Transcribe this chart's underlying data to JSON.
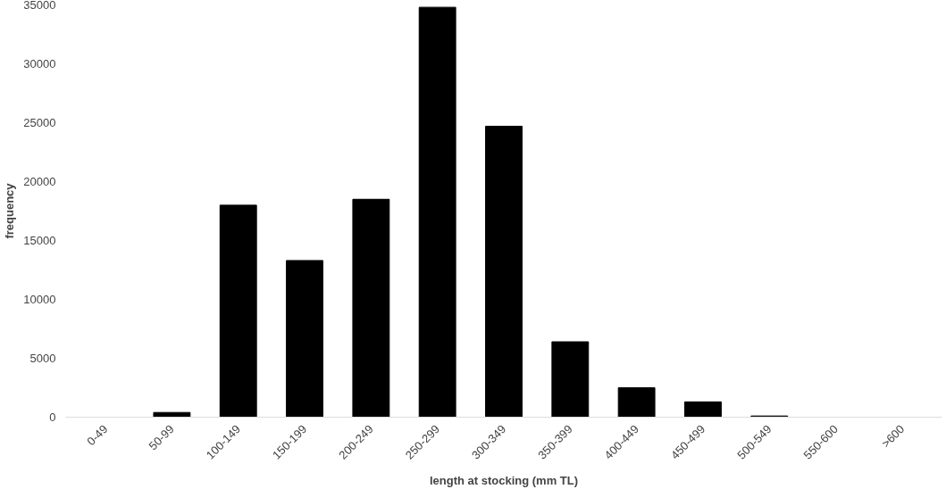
{
  "chart_data": {
    "type": "bar",
    "xlabel": "length at stocking (mm TL)",
    "ylabel": "frequency",
    "categories": [
      "0-49",
      "50-99",
      "100-149",
      "150-199",
      "200-249",
      "250-299",
      "300-349",
      "350-399",
      "400-449",
      "450-499",
      "500-549",
      "550-600",
      ">600"
    ],
    "values": [
      0,
      400,
      18000,
      13300,
      18500,
      34800,
      24700,
      6400,
      2500,
      1300,
      100,
      0,
      0
    ],
    "color": "#000000",
    "ylim": [
      0,
      35000
    ],
    "yticks": [
      0,
      5000,
      10000,
      15000,
      20000,
      25000,
      30000,
      35000
    ],
    "grid": false
  }
}
